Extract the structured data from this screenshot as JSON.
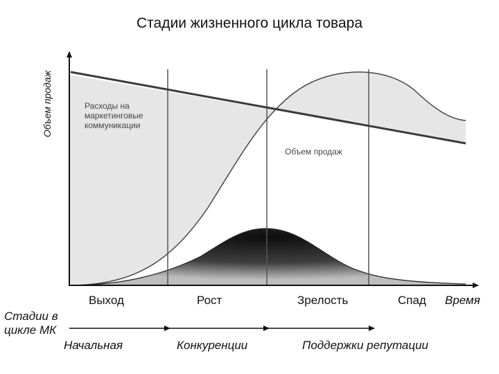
{
  "title": "Стадии жизненного цикла товара",
  "y_axis_label": "Объем продаж",
  "x_axis_label": "Время",
  "costs_label": "Расходы на маркетинговые коммуникации",
  "sales_label": "Объем продаж",
  "stages": [
    "Выход",
    "Рост",
    "Зрелость",
    "Спад"
  ],
  "mc_label": "Стадии в цикле МК",
  "mc_stages": [
    "Начальная",
    "Конкуренции",
    "Поддержки репутации"
  ]
}
